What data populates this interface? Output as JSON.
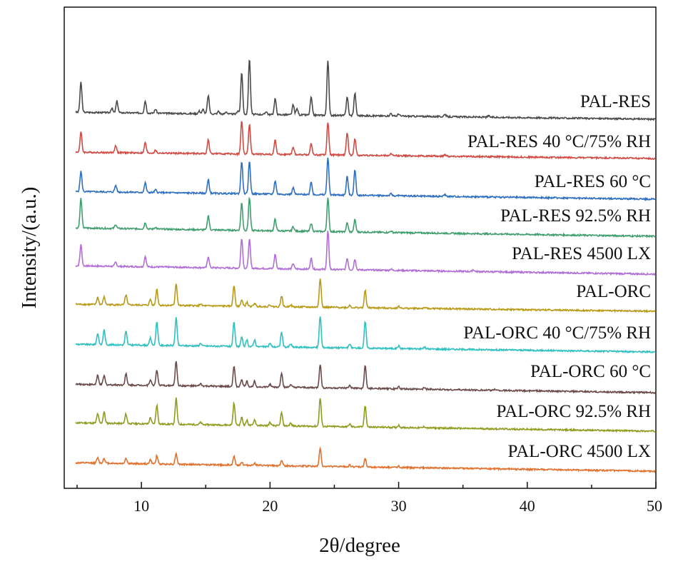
{
  "chart_data": {
    "type": "line",
    "title": "",
    "xlabel": "2θ/degree",
    "ylabel": "Intensity/(a.u.)",
    "xlim": [
      4,
      50
    ],
    "xticks": [
      10,
      20,
      30,
      40,
      50
    ],
    "grid": false,
    "legend": "labels above each trace, right side",
    "series": [
      {
        "name": "PAL-RES",
        "color": "#4a4a4a",
        "baseline": 1.0,
        "peaks": [
          [
            5.3,
            6.7
          ],
          [
            7.7,
            1.0
          ],
          [
            8.1,
            2.6
          ],
          [
            10.3,
            2.7
          ],
          [
            11.1,
            0.9
          ],
          [
            14.5,
            0.6
          ],
          [
            14.8,
            1.0
          ],
          [
            15.2,
            4.1
          ],
          [
            16.0,
            0.6
          ],
          [
            16.6,
            0.5
          ],
          [
            17.5,
            0.8
          ],
          [
            17.8,
            9.3
          ],
          [
            18.4,
            12.4
          ],
          [
            19.7,
            0.7
          ],
          [
            20.4,
            3.6
          ],
          [
            21.8,
            2.2
          ],
          [
            22.1,
            1.4
          ],
          [
            23.2,
            4.0
          ],
          [
            24.5,
            12.3
          ],
          [
            26.0,
            4.2
          ],
          [
            26.6,
            5.0
          ],
          [
            29.4,
            0.6
          ],
          [
            30.0,
            0.5
          ],
          [
            33.6,
            0.6
          ],
          [
            37.0,
            0.3
          ]
        ]
      },
      {
        "name": "PAL-RES 40 °C/75% RH",
        "color": "#d14b45",
        "baseline": 1.0,
        "peaks": [
          [
            5.3,
            4.5
          ],
          [
            8.0,
            1.6
          ],
          [
            10.3,
            2.3
          ],
          [
            11.1,
            0.6
          ],
          [
            15.2,
            3.1
          ],
          [
            17.8,
            7.3
          ],
          [
            18.4,
            6.6
          ],
          [
            20.4,
            3.3
          ],
          [
            21.8,
            1.6
          ],
          [
            23.2,
            2.5
          ],
          [
            24.5,
            7.3
          ],
          [
            26.0,
            5.1
          ],
          [
            26.6,
            3.7
          ],
          [
            29.4,
            0.4
          ],
          [
            33.6,
            0.4
          ]
        ]
      },
      {
        "name": "PAL-RES 60 °C",
        "color": "#2f6fc0",
        "baseline": 1.0,
        "peaks": [
          [
            5.3,
            4.5
          ],
          [
            8.0,
            1.5
          ],
          [
            10.3,
            2.1
          ],
          [
            11.1,
            0.6
          ],
          [
            15.2,
            3.0
          ],
          [
            17.8,
            7.2
          ],
          [
            18.4,
            7.2
          ],
          [
            20.4,
            3.0
          ],
          [
            21.8,
            1.5
          ],
          [
            23.2,
            2.9
          ],
          [
            24.5,
            8.3
          ],
          [
            26.0,
            4.1
          ],
          [
            26.6,
            5.6
          ],
          [
            29.4,
            0.4
          ],
          [
            33.6,
            0.4
          ]
        ]
      },
      {
        "name": "PAL-RES 92.5% RH",
        "color": "#3f9e6e",
        "baseline": 1.0,
        "peaks": [
          [
            5.3,
            6.6
          ],
          [
            8.0,
            0.9
          ],
          [
            10.3,
            1.4
          ],
          [
            11.1,
            0.4
          ],
          [
            15.2,
            3.2
          ],
          [
            17.8,
            6.1
          ],
          [
            18.4,
            7.3
          ],
          [
            20.4,
            2.6
          ],
          [
            21.8,
            1.0
          ],
          [
            23.2,
            1.8
          ],
          [
            24.5,
            7.5
          ],
          [
            26.0,
            2.0
          ],
          [
            26.6,
            2.7
          ],
          [
            29.4,
            0.3
          ]
        ]
      },
      {
        "name": "PAL-RES 4500 LX",
        "color": "#b06ed6",
        "baseline": 1.0,
        "peaks": [
          [
            5.3,
            4.7
          ],
          [
            8.0,
            0.9
          ],
          [
            10.3,
            2.3
          ],
          [
            15.2,
            2.5
          ],
          [
            17.8,
            6.7
          ],
          [
            18.4,
            6.4
          ],
          [
            20.4,
            3.2
          ],
          [
            21.8,
            1.2
          ],
          [
            23.2,
            2.4
          ],
          [
            24.5,
            8.5
          ],
          [
            26.0,
            2.5
          ],
          [
            26.6,
            2.4
          ],
          [
            29.4,
            0.3
          ],
          [
            35.8,
            0.4
          ]
        ]
      },
      {
        "name": "PAL-ORC",
        "color": "#b99a16",
        "baseline": 1.0,
        "peaks": [
          [
            6.6,
            1.6
          ],
          [
            7.1,
            1.7
          ],
          [
            8.8,
            2.2
          ],
          [
            10.7,
            1.3
          ],
          [
            11.2,
            3.6
          ],
          [
            12.7,
            4.9
          ],
          [
            14.6,
            0.4
          ],
          [
            17.2,
            4.6
          ],
          [
            17.8,
            1.4
          ],
          [
            18.2,
            0.9
          ],
          [
            18.8,
            0.7
          ],
          [
            20.0,
            0.4
          ],
          [
            20.9,
            2.4
          ],
          [
            21.6,
            0.5
          ],
          [
            23.9,
            6.5
          ],
          [
            26.2,
            0.5
          ],
          [
            27.4,
            3.8
          ],
          [
            30.0,
            0.4
          ],
          [
            32.0,
            0.2
          ]
        ]
      },
      {
        "name": "PAL-ORC 40 °C/75% RH",
        "color": "#2fc0c0",
        "baseline": 1.0,
        "peaks": [
          [
            6.6,
            2.5
          ],
          [
            7.1,
            3.3
          ],
          [
            8.8,
            3.0
          ],
          [
            10.7,
            1.6
          ],
          [
            11.2,
            5.3
          ],
          [
            12.7,
            6.2
          ],
          [
            14.6,
            0.6
          ],
          [
            17.2,
            5.3
          ],
          [
            17.8,
            2.0
          ],
          [
            18.2,
            1.4
          ],
          [
            18.8,
            1.5
          ],
          [
            20.0,
            0.8
          ],
          [
            20.9,
            3.3
          ],
          [
            21.6,
            0.7
          ],
          [
            23.9,
            7.0
          ],
          [
            26.2,
            0.8
          ],
          [
            27.4,
            5.9
          ],
          [
            30.0,
            0.6
          ],
          [
            32.0,
            0.4
          ]
        ]
      },
      {
        "name": "PAL-ORC 60 °C",
        "color": "#6b4a4a",
        "baseline": 1.0,
        "peaks": [
          [
            6.6,
            2.0
          ],
          [
            7.1,
            2.0
          ],
          [
            8.8,
            2.5
          ],
          [
            10.7,
            1.3
          ],
          [
            11.2,
            3.5
          ],
          [
            12.7,
            5.5
          ],
          [
            14.6,
            0.5
          ],
          [
            17.2,
            4.5
          ],
          [
            17.8,
            1.6
          ],
          [
            18.2,
            1.2
          ],
          [
            18.8,
            1.3
          ],
          [
            20.0,
            0.6
          ],
          [
            20.9,
            3.2
          ],
          [
            21.6,
            0.6
          ],
          [
            23.9,
            5.2
          ],
          [
            26.2,
            0.6
          ],
          [
            27.4,
            5.0
          ],
          [
            30.0,
            0.5
          ],
          [
            32.0,
            0.4
          ],
          [
            37.5,
            0.3
          ]
        ]
      },
      {
        "name": "PAL-ORC 92.5% RH",
        "color": "#8f9c1e",
        "baseline": 1.0,
        "peaks": [
          [
            6.6,
            2.1
          ],
          [
            7.1,
            2.5
          ],
          [
            8.8,
            2.1
          ],
          [
            10.7,
            1.4
          ],
          [
            11.2,
            4.2
          ],
          [
            12.7,
            5.8
          ],
          [
            14.6,
            0.5
          ],
          [
            17.2,
            4.9
          ],
          [
            17.8,
            1.7
          ],
          [
            18.2,
            1.1
          ],
          [
            18.8,
            1.3
          ],
          [
            20.0,
            0.7
          ],
          [
            20.9,
            2.9
          ],
          [
            21.6,
            0.6
          ],
          [
            23.9,
            6.3
          ],
          [
            26.2,
            0.6
          ],
          [
            27.4,
            4.8
          ],
          [
            30.0,
            0.5
          ],
          [
            32.0,
            0.3
          ]
        ]
      },
      {
        "name": "PAL-ORC 4500 LX",
        "color": "#e0712e",
        "baseline": 1.0,
        "peaks": [
          [
            6.6,
            1.2
          ],
          [
            7.1,
            1.1
          ],
          [
            8.8,
            1.2
          ],
          [
            10.7,
            0.9
          ],
          [
            11.2,
            1.8
          ],
          [
            12.7,
            2.4
          ],
          [
            17.2,
            1.9
          ],
          [
            17.8,
            0.7
          ],
          [
            18.8,
            0.5
          ],
          [
            20.9,
            1.2
          ],
          [
            23.9,
            4.0
          ],
          [
            26.2,
            0.4
          ],
          [
            27.4,
            1.9
          ],
          [
            30.0,
            0.3
          ]
        ]
      }
    ]
  }
}
